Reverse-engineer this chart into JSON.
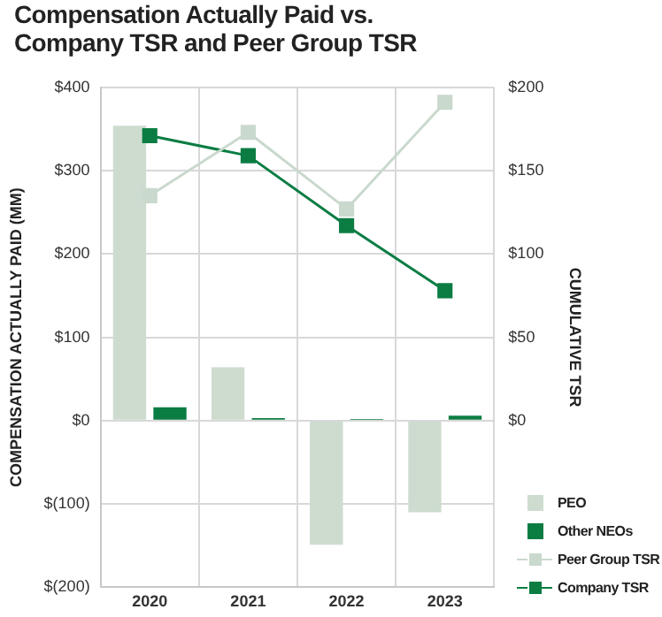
{
  "chart_data": {
    "type": "bar",
    "title": "Compensation Actually Paid vs.\nCompany TSR and Peer Group TSR",
    "ylabel": "COMPENSATION ACTUALLY PAID (MM)",
    "y2label": "CUMULATIVE TSR",
    "categories": [
      "2020",
      "2021",
      "2022",
      "2023"
    ],
    "series": [
      {
        "name": "PEO",
        "color": "#cddccf",
        "values": [
          354,
          64,
          -149,
          -110
        ]
      },
      {
        "name": "Other NEOs",
        "color": "#0b7d43",
        "values": [
          16,
          3,
          2,
          6
        ]
      },
      {
        "name": "Peer Group TSR",
        "type": "line",
        "axis": "y2",
        "color": "#c9d9cd",
        "values": [
          135,
          173,
          127,
          191
        ]
      },
      {
        "name": "Company TSR",
        "type": "line",
        "axis": "y2",
        "color": "#0b7d43",
        "values": [
          171,
          159,
          117,
          78
        ]
      }
    ],
    "ylim": [
      -200,
      400
    ],
    "yticks": [
      {
        "value": -200,
        "label": "$(200)"
      },
      {
        "value": -100,
        "label": "$(100)"
      },
      {
        "value": 0,
        "label": "$0"
      },
      {
        "value": 100,
        "label": "$100"
      },
      {
        "value": 200,
        "label": "$200"
      },
      {
        "value": 300,
        "label": "$300"
      },
      {
        "value": 400,
        "label": "$400"
      }
    ],
    "y2lim": [
      -100,
      200
    ],
    "y2ticks": [
      {
        "value": 0,
        "label": "$0"
      },
      {
        "value": 50,
        "label": "$50"
      },
      {
        "value": 100,
        "label": "$100"
      },
      {
        "value": 150,
        "label": "$150"
      },
      {
        "value": 200,
        "label": "$200"
      }
    ],
    "grid": true,
    "legend": "bottom right",
    "marker": "square",
    "line_style": "solid"
  }
}
